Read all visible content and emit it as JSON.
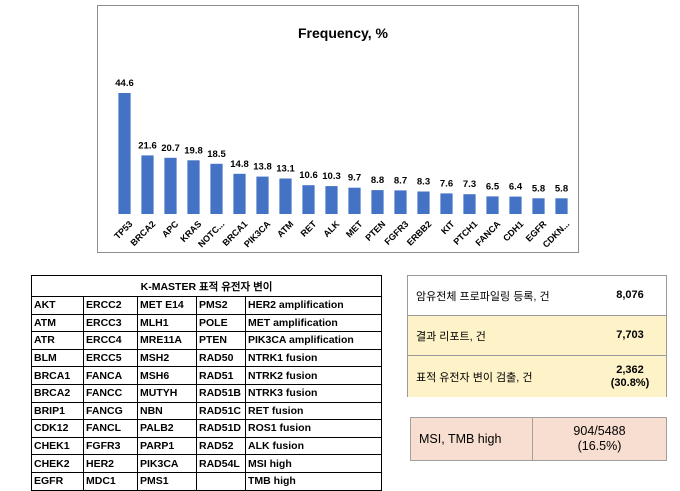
{
  "chart_data": {
    "type": "bar",
    "title": "Frequency, %",
    "categories": [
      "TP53",
      "BRCA2",
      "APC",
      "KRAS",
      "NOTC...",
      "BRCA1",
      "PIK3CA",
      "ATM",
      "RET",
      "ALK",
      "MET",
      "PTEN",
      "FGFR3",
      "ERBB2",
      "KIT",
      "PTCH1",
      "FANCA",
      "CDH1",
      "EGFR",
      "CDKN..."
    ],
    "values": [
      44.6,
      21.6,
      20.7,
      19.8,
      18.5,
      14.8,
      13.8,
      13.1,
      10.6,
      10.3,
      9.7,
      8.8,
      8.7,
      8.3,
      7.6,
      7.3,
      6.5,
      6.4,
      5.8,
      5.8
    ],
    "value_labels": [
      "44.6",
      "21.6",
      "20.7",
      "19.8",
      "18.5",
      "14.8",
      "13.8",
      "13.1",
      "10.6",
      "10.3",
      "9.7",
      "8.8",
      "8.7",
      "8.3",
      "7.6",
      "7.3",
      "6.5",
      "6.4",
      "5.8",
      "5.8"
    ],
    "bar_color": "#4472c4",
    "ylim": [
      0,
      50
    ],
    "grid": false,
    "legend": "none"
  },
  "gene_table": {
    "title": "K-MASTER 표적 유전자 변이",
    "rows": [
      [
        "AKT",
        "ERCC2",
        "MET E14",
        "PMS2",
        "HER2 amplification"
      ],
      [
        "ATM",
        "ERCC3",
        "MLH1",
        "POLE",
        "MET amplification"
      ],
      [
        "ATR",
        "ERCC4",
        "MRE11A",
        "PTEN",
        "PIK3CA amplification"
      ],
      [
        "BLM",
        "ERCC5",
        "MSH2",
        "RAD50",
        "NTRK1 fusion"
      ],
      [
        "BRCA1",
        "FANCA",
        "MSH6",
        "RAD51",
        "NTRK2 fusion"
      ],
      [
        "BRCA2",
        "FANCC",
        "MUTYH",
        "RAD51B",
        "NTRK3 fusion"
      ],
      [
        "BRIP1",
        "FANCG",
        "NBN",
        "RAD51C",
        "RET fusion"
      ],
      [
        "CDK12",
        "FANCL",
        "PALB2",
        "RAD51D",
        "ROS1 fusion"
      ],
      [
        "CHEK1",
        "FGFR3",
        "PARP1",
        "RAD52",
        "ALK fusion"
      ],
      [
        "CHEK2",
        "HER2",
        "PIK3CA",
        "RAD54L",
        "MSI high"
      ],
      [
        "EGFR",
        "MDC1",
        "PMS1",
        "",
        "TMB high"
      ]
    ]
  },
  "summary": {
    "registered": {
      "label": "암유전체 프로파일링 등록, 건",
      "value": "8,076"
    },
    "report": {
      "label": "결과 리포트, 건",
      "value": "7,703"
    },
    "detect": {
      "label": "표적 유전자 변이 검출, 건",
      "value": "2,362",
      "value2": "(30.8%)"
    }
  },
  "msi": {
    "label": "MSI, TMB high",
    "value": "904/5488",
    "value2": "(16.5%)"
  },
  "colors": {
    "bar": "#4472c4",
    "summary_highlight": "#fdf2c8",
    "msi_bg": "#f7ded0"
  }
}
